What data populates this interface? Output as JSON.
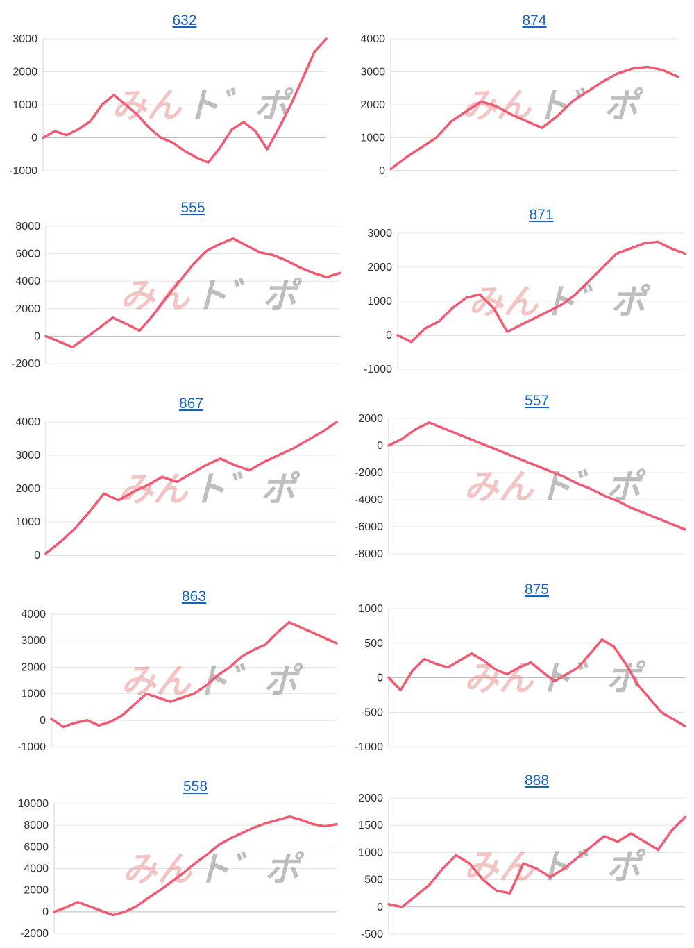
{
  "watermark": {
    "text_left": "みん",
    "text_right": "ト゛ポ"
  },
  "colors": {
    "series": "#f25a72",
    "title_link": "#1565c0"
  },
  "chart_data": [
    {
      "type": "line",
      "title": "632",
      "ylim": [
        -1000,
        3000
      ],
      "yticks": [
        -1000,
        0,
        1000,
        2000,
        3000
      ],
      "x": [
        0,
        1,
        2,
        3,
        4,
        5,
        6,
        7,
        8,
        9,
        10,
        11,
        12,
        13,
        14,
        15,
        16,
        17,
        18,
        19,
        20,
        21,
        22,
        23,
        24
      ],
      "values": [
        0,
        200,
        80,
        260,
        500,
        1000,
        1300,
        1000,
        700,
        300,
        0,
        -150,
        -400,
        -600,
        -750,
        -300,
        250,
        480,
        200,
        -350,
        300,
        1000,
        1800,
        2600,
        3000
      ]
    },
    {
      "type": "line",
      "title": "874",
      "ylim": [
        0,
        4000
      ],
      "yticks": [
        0,
        1000,
        2000,
        3000,
        4000
      ],
      "x": [
        0,
        1,
        2,
        3,
        4,
        5,
        6,
        7,
        8,
        9,
        10,
        11,
        12,
        13,
        14,
        15,
        16,
        17,
        18,
        19
      ],
      "values": [
        50,
        400,
        700,
        1000,
        1500,
        1800,
        2100,
        1950,
        1700,
        1500,
        1300,
        1650,
        2100,
        2400,
        2700,
        2950,
        3100,
        3150,
        3050,
        2850
      ]
    },
    {
      "type": "line",
      "title": "555",
      "ylim": [
        -2000,
        8000
      ],
      "yticks": [
        -2000,
        0,
        2000,
        4000,
        6000,
        8000
      ],
      "x": [
        0,
        1,
        2,
        3,
        4,
        5,
        6,
        7,
        8,
        9,
        10,
        11,
        12,
        13,
        14,
        15,
        16,
        17,
        18,
        19,
        20,
        21,
        22
      ],
      "values": [
        0,
        -400,
        -800,
        -100,
        600,
        1350,
        900,
        400,
        1500,
        2800,
        4000,
        5200,
        6200,
        6700,
        7100,
        6600,
        6100,
        5900,
        5500,
        5000,
        4600,
        4300,
        4600
      ]
    },
    {
      "type": "line",
      "title": "871",
      "ylim": [
        -1000,
        3000
      ],
      "yticks": [
        -1000,
        0,
        1000,
        2000,
        3000
      ],
      "x": [
        0,
        1,
        2,
        3,
        4,
        5,
        6,
        7,
        8,
        9,
        10,
        11,
        12,
        13,
        14,
        15,
        16,
        17,
        18,
        19,
        20,
        21
      ],
      "values": [
        0,
        -200,
        200,
        400,
        800,
        1100,
        1200,
        800,
        100,
        300,
        500,
        700,
        900,
        1200,
        1600,
        2000,
        2400,
        2550,
        2700,
        2750,
        2550,
        2400
      ]
    },
    {
      "type": "line",
      "title": "867",
      "ylim": [
        0,
        4000
      ],
      "yticks": [
        0,
        1000,
        2000,
        3000,
        4000
      ],
      "x": [
        0,
        1,
        2,
        3,
        4,
        5,
        6,
        7,
        8,
        9,
        10,
        11,
        12,
        13,
        14,
        15,
        16,
        17,
        18,
        19,
        20
      ],
      "values": [
        50,
        400,
        800,
        1300,
        1850,
        1650,
        1900,
        2100,
        2350,
        2200,
        2450,
        2700,
        2900,
        2700,
        2550,
        2800,
        3000,
        3200,
        3450,
        3700,
        4000
      ]
    },
    {
      "type": "line",
      "title": "557",
      "ylim": [
        -8000,
        2000
      ],
      "yticks": [
        -8000,
        -6000,
        -4000,
        -2000,
        0,
        2000
      ],
      "x": [
        0,
        1,
        2,
        3,
        4,
        5,
        6,
        7,
        8,
        9,
        10,
        11,
        12,
        13,
        14,
        15,
        16,
        17,
        18,
        19,
        20,
        21,
        22
      ],
      "values": [
        0,
        500,
        1200,
        1700,
        1300,
        900,
        500,
        100,
        -300,
        -700,
        -1100,
        -1500,
        -1900,
        -2300,
        -2800,
        -3200,
        -3700,
        -4100,
        -4600,
        -5000,
        -5400,
        -5800,
        -6200
      ]
    },
    {
      "type": "line",
      "title": "863",
      "ylim": [
        -1000,
        4000
      ],
      "yticks": [
        -1000,
        0,
        1000,
        2000,
        3000,
        4000
      ],
      "x": [
        0,
        1,
        2,
        3,
        4,
        5,
        6,
        7,
        8,
        9,
        10,
        11,
        12,
        13,
        14,
        15,
        16,
        17,
        18,
        19,
        20,
        21,
        22,
        23,
        24
      ],
      "values": [
        50,
        -250,
        -100,
        0,
        -200,
        -50,
        200,
        600,
        1000,
        850,
        700,
        850,
        1000,
        1300,
        1700,
        2000,
        2400,
        2650,
        2850,
        3300,
        3700,
        3500,
        3300,
        3100,
        2900
      ]
    },
    {
      "type": "line",
      "title": "875",
      "ylim": [
        -1000,
        1000
      ],
      "yticks": [
        -1000,
        -500,
        0,
        500,
        1000
      ],
      "x": [
        0,
        1,
        2,
        3,
        4,
        5,
        6,
        7,
        8,
        9,
        10,
        11,
        12,
        13,
        14,
        15,
        16,
        17,
        18,
        19,
        20,
        21,
        22,
        23,
        24,
        25
      ],
      "values": [
        0,
        -180,
        100,
        270,
        200,
        150,
        250,
        350,
        250,
        120,
        50,
        150,
        220,
        80,
        -50,
        50,
        150,
        350,
        550,
        450,
        200,
        -100,
        -300,
        -500,
        -600,
        -700
      ]
    },
    {
      "type": "line",
      "title": "558",
      "ylim": [
        -2000,
        10000
      ],
      "yticks": [
        -2000,
        0,
        2000,
        4000,
        6000,
        8000,
        10000
      ],
      "x": [
        0,
        1,
        2,
        3,
        4,
        5,
        6,
        7,
        8,
        9,
        10,
        11,
        12,
        13,
        14,
        15,
        16,
        17,
        18,
        19,
        20,
        21,
        22,
        23,
        24
      ],
      "values": [
        0,
        400,
        900,
        500,
        100,
        -300,
        0,
        500,
        1300,
        2000,
        2800,
        3600,
        4500,
        5300,
        6200,
        6800,
        7300,
        7800,
        8200,
        8500,
        8800,
        8500,
        8100,
        7900,
        8100
      ]
    },
    {
      "type": "line",
      "title": "888",
      "ylim": [
        -500,
        2000
      ],
      "yticks": [
        -500,
        0,
        500,
        1000,
        1500,
        2000
      ],
      "x": [
        0,
        1,
        2,
        3,
        4,
        5,
        6,
        7,
        8,
        9,
        10,
        11,
        12,
        13,
        14,
        15,
        16,
        17,
        18,
        19,
        20,
        21,
        22
      ],
      "values": [
        50,
        0,
        200,
        400,
        700,
        950,
        800,
        500,
        300,
        250,
        800,
        700,
        550,
        700,
        900,
        1100,
        1300,
        1200,
        1350,
        1200,
        1050,
        1400,
        1650
      ]
    }
  ]
}
